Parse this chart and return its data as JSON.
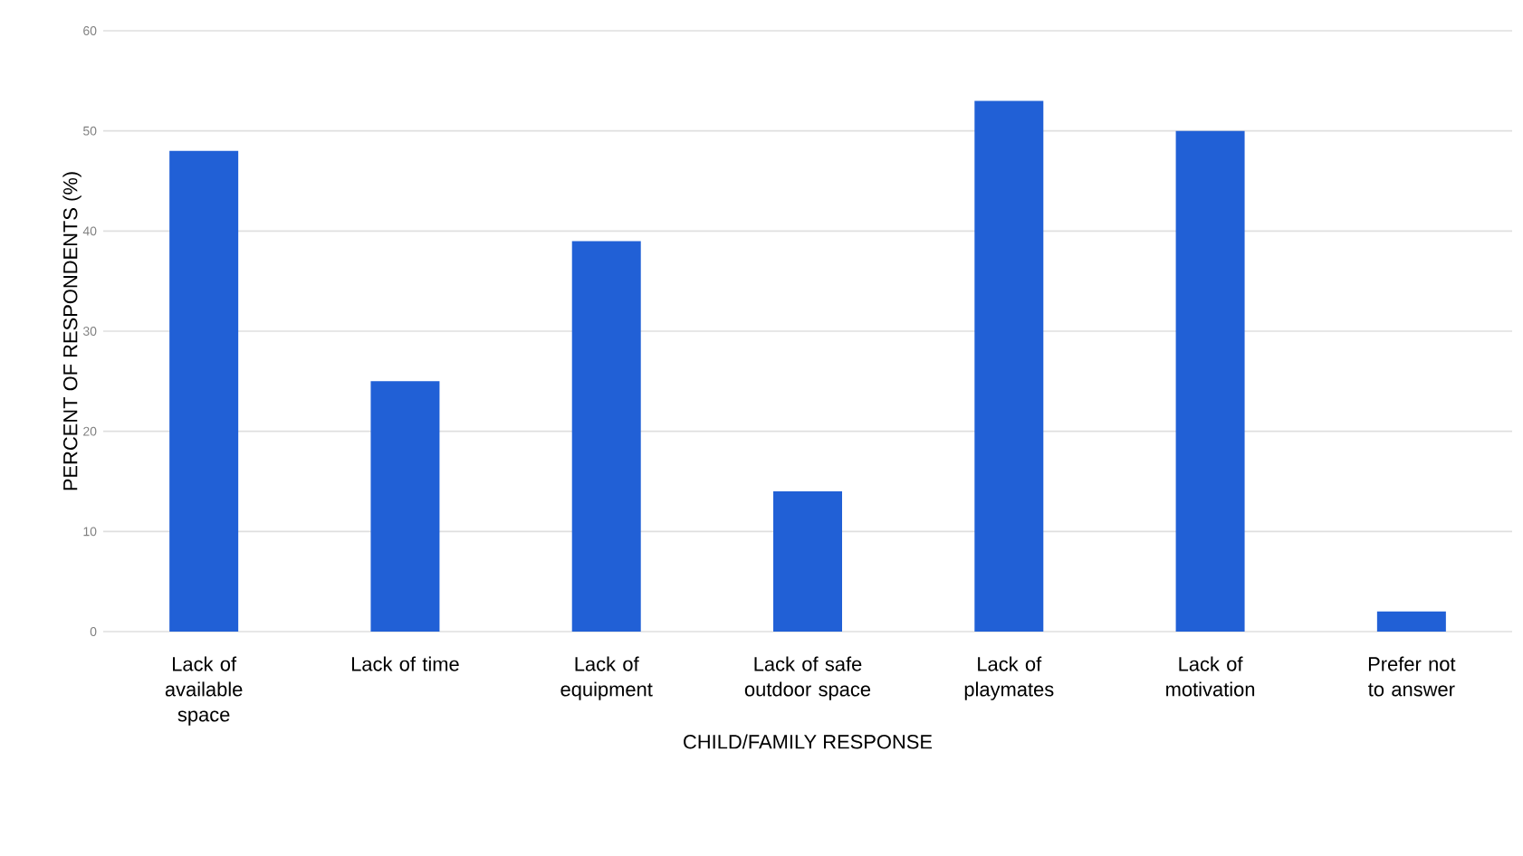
{
  "chart_data": {
    "type": "bar",
    "xlabel": "CHILD/FAMILY RESPONSE",
    "ylabel": "PERCENT OF RESPONDENTS (%)",
    "categories": [
      "Lack of available space",
      "Lack of time",
      "Lack of equipment",
      "Lack of safe outdoor space",
      "Lack of playmates",
      "Lack of motivation",
      "Prefer not to answer"
    ],
    "values": [
      48,
      25,
      39,
      14,
      53,
      50,
      2
    ],
    "color": "#2160d6",
    "ylim": [
      0,
      60
    ],
    "yticks": [
      0,
      10,
      20,
      30,
      40,
      50,
      60
    ],
    "grid": "y"
  }
}
